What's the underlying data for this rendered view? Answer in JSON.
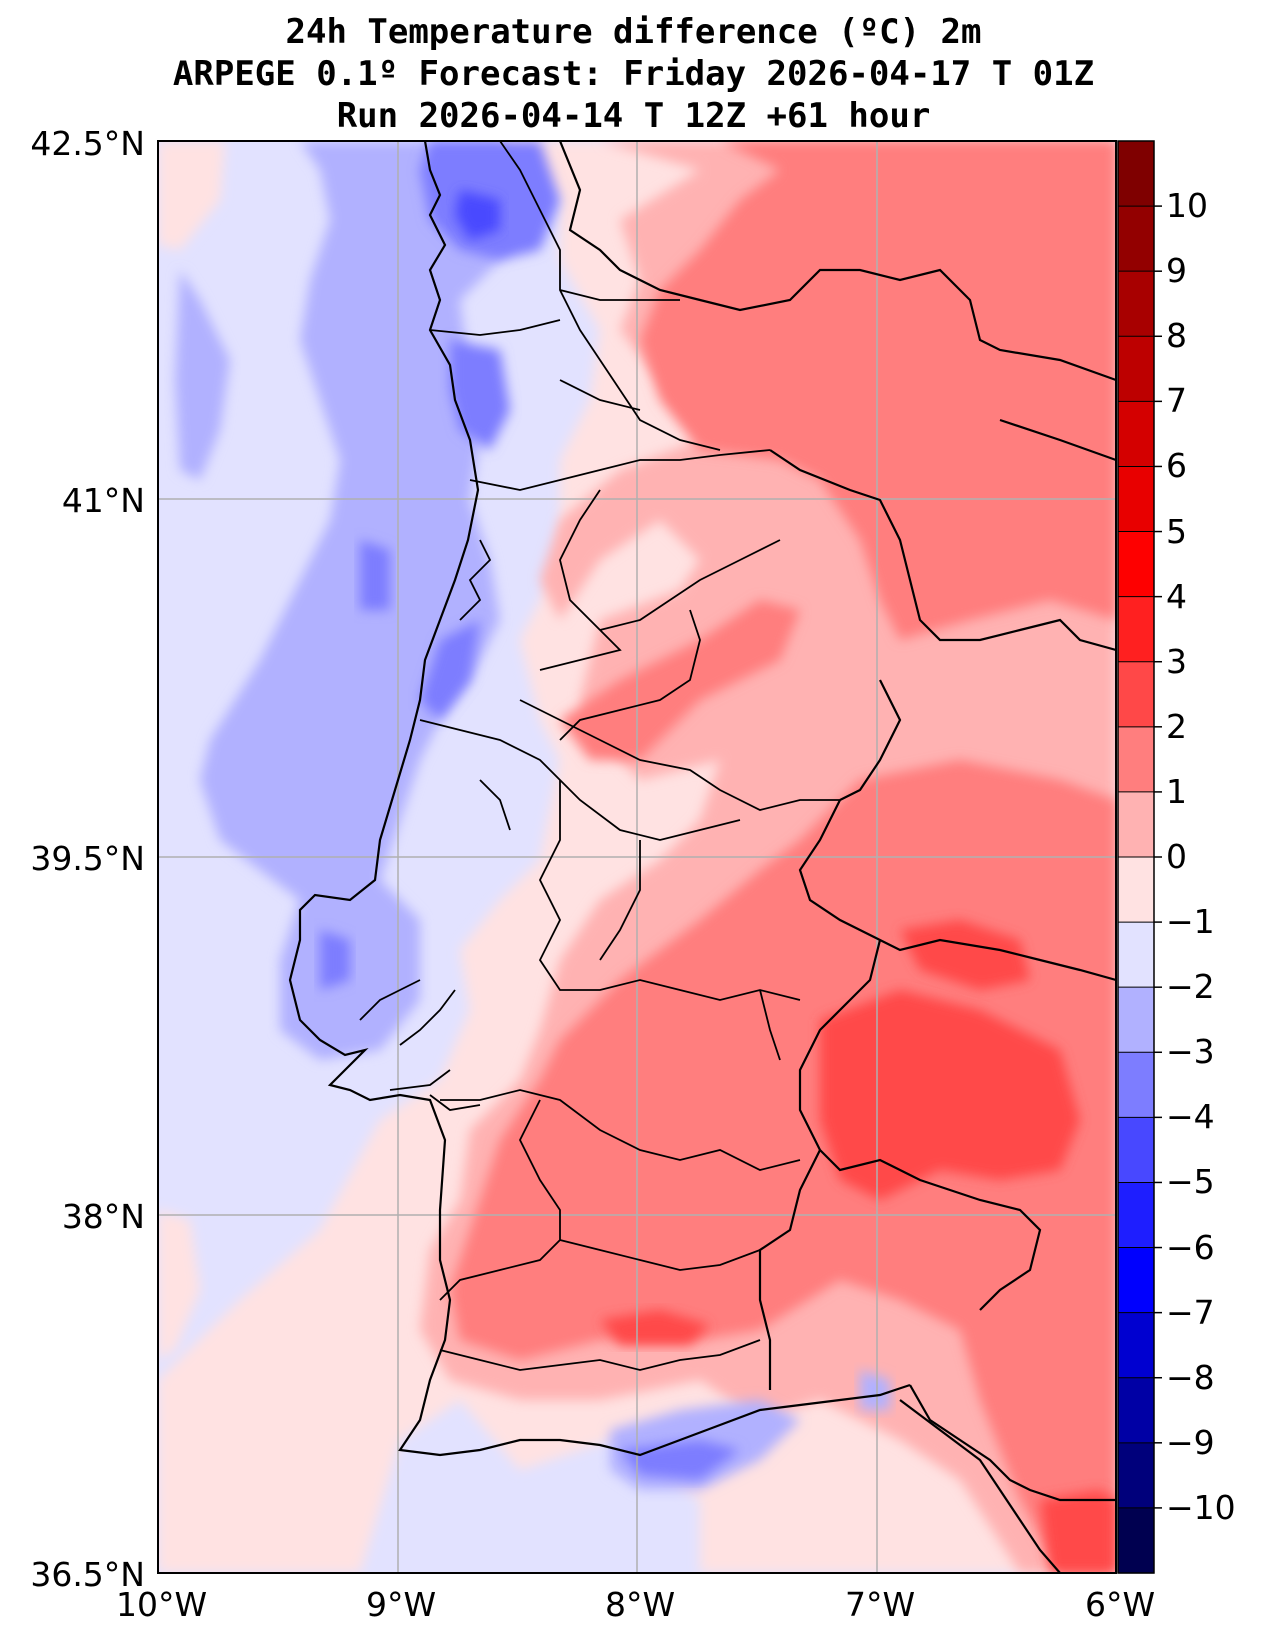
{
  "title": {
    "line1": "24h Temperature difference (ºC) 2m",
    "line2": "ARPEGE 0.1º Forecast: Friday 2026-04-17 T 01Z",
    "line3": "Run 2026-04-14 T 12Z +61 hour"
  },
  "map": {
    "lat_range": [
      36.5,
      42.5
    ],
    "lon_range": [
      -10,
      -6
    ],
    "lat_ticks": [
      "42.5°N",
      "41°N",
      "39.5°N",
      "38°N",
      "36.5°N"
    ],
    "lon_ticks": [
      "10°W",
      "9°W",
      "8°W",
      "7°W",
      "6°W"
    ],
    "lat_tick_values": [
      42.5,
      41,
      39.5,
      38,
      36.5
    ],
    "lon_tick_values": [
      -10,
      -9,
      -8,
      -7,
      -6
    ]
  },
  "colorbar": {
    "labels": [
      "10",
      "9",
      "8",
      "7",
      "6",
      "5",
      "4",
      "3",
      "2",
      "1",
      "0",
      "−1",
      "−2",
      "−3",
      "−4",
      "−5",
      "−6",
      "−7",
      "−8",
      "−9",
      "−10"
    ],
    "levels": [
      11,
      10,
      9,
      8,
      7,
      6,
      5,
      4,
      3,
      2,
      1,
      0,
      -1,
      -2,
      -3,
      -4,
      -5,
      -6,
      -7,
      -8,
      -9,
      -10,
      -11
    ],
    "colors": [
      "#7f0000",
      "#930000",
      "#a80000",
      "#bd0000",
      "#d40000",
      "#e80000",
      "#fe0000",
      "#ff2020",
      "#ff4848",
      "#ff7e7e",
      "#ffb2b2",
      "#ffe2e2",
      "#e2e2ff",
      "#b1b1ff",
      "#7d7dff",
      "#4848ff",
      "#1e1eff",
      "#0000fe",
      "#0000d0",
      "#0000a5",
      "#00007b",
      "#000050"
    ]
  }
}
